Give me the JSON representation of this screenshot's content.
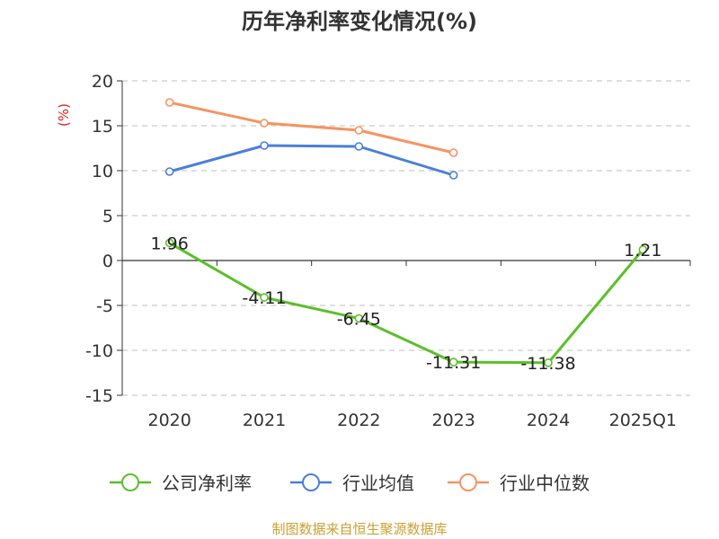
{
  "source": "制图数据来自恒生聚源数据库",
  "chart_data": {
    "type": "line",
    "title": "历年净利率变化情况(%)",
    "ylabel": "(%)",
    "xlabel": "",
    "categories": [
      "2020",
      "2021",
      "2022",
      "2023",
      "2024",
      "2025Q1"
    ],
    "ylim": [
      -15,
      20
    ],
    "yticks": [
      20,
      15,
      10,
      5,
      0,
      -5,
      -10,
      -15
    ],
    "grid": true,
    "legend_position": "bottom",
    "series": [
      {
        "name": "公司净利率",
        "color": "#5cbf2a",
        "values": [
          1.96,
          -4.11,
          -6.45,
          -11.31,
          -11.38,
          1.21
        ],
        "labels": [
          "1.96",
          "-4.11",
          "-6.45",
          "-11.31",
          "-11.38",
          "1.21"
        ]
      },
      {
        "name": "行业均值",
        "color": "#4a7fd8",
        "values": [
          9.9,
          12.8,
          12.7,
          9.5,
          null,
          null
        ]
      },
      {
        "name": "行业中位数",
        "color": "#f59462",
        "values": [
          17.6,
          15.3,
          14.5,
          12.0,
          null,
          null
        ]
      }
    ],
    "colors": {
      "ylabel": "#e02020",
      "source": "#c9a033"
    }
  }
}
